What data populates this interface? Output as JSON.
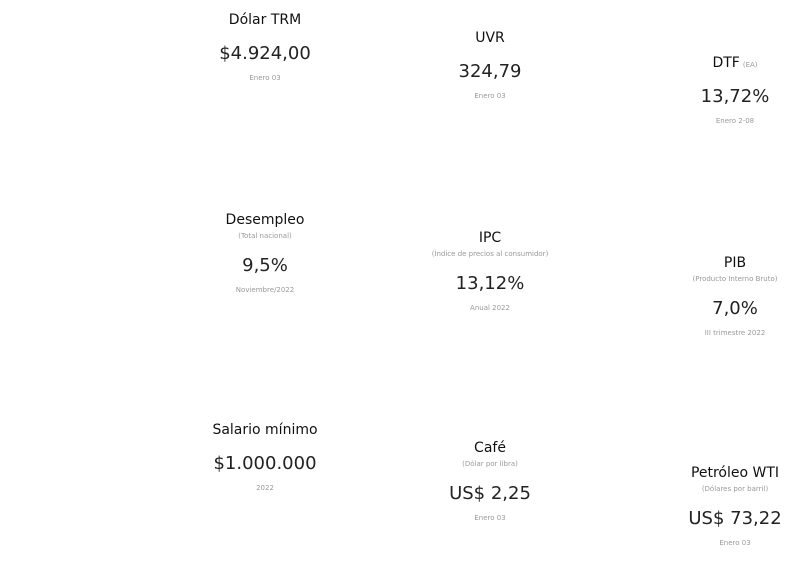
{
  "indicators": [
    {
      "title": "Dólar TRM",
      "value": "$4.924,00",
      "date": "Enero 03"
    },
    {
      "title": "UVR",
      "value": "324,79",
      "date": "Enero 03"
    },
    {
      "title": "DTF",
      "subtitle": "(EA)",
      "value": "13,72%",
      "date": "Enero 2-08"
    },
    {
      "title": "Desempleo",
      "subtitle": "(Total nacional)",
      "value": "9,5%",
      "date": "Noviembre/2022"
    },
    {
      "title": "IPC",
      "subtitle": "(Índice de precios al consumidor)",
      "value": "13,12%",
      "date": "Anual 2022"
    },
    {
      "title": "PIB",
      "subtitle": "(Producto Interno Bruto)",
      "value": "7,0%",
      "date": "III trimestre 2022"
    },
    {
      "title": "Salario mínimo",
      "value": "$1.000.000",
      "date": "2022"
    },
    {
      "title": "Café",
      "subtitle": "(Dólar por libra)",
      "value": "US$ 2,25",
      "date": "Enero 03"
    },
    {
      "title": "Petróleo WTI",
      "subtitle": "(Dólares por barril)",
      "value": "US$ 73,22",
      "date": "Enero 03"
    }
  ]
}
